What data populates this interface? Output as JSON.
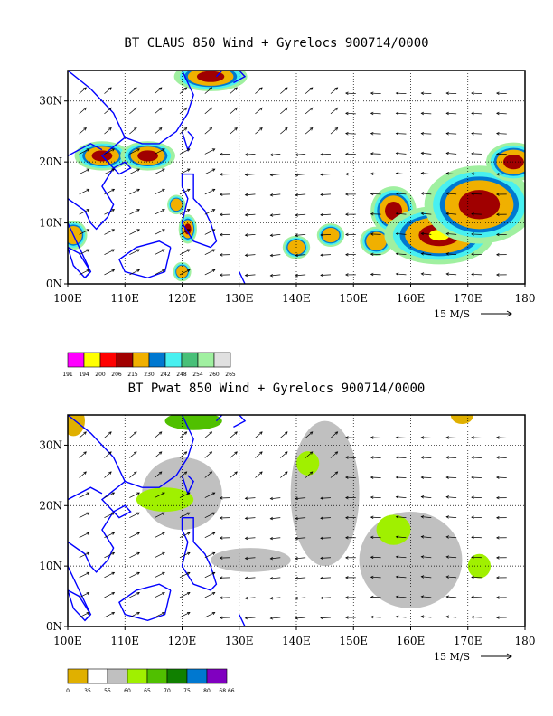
{
  "panels": [
    {
      "title": "BT CLAUS 850 Wind + Gyrelocs 900714/0000",
      "lat_labels": [
        "30N",
        "20N",
        "10N",
        "0N"
      ],
      "lon_labels": [
        "100E",
        "110E",
        "120E",
        "130E",
        "140E",
        "150E",
        "160E",
        "170E",
        "180"
      ],
      "ref_vector_label": "15 M/S",
      "legend": {
        "colors": [
          "#ff00ff",
          "#ffff00",
          "#ff0000",
          "#a00000",
          "#f0b000",
          "#0078d0",
          "#48f0f0",
          "#48c078",
          "#a0f0a0",
          "#e0e0e0"
        ],
        "labels": [
          "191",
          "194",
          "200",
          "206",
          "215",
          "230",
          "242",
          "248",
          "254",
          "260",
          "265"
        ]
      }
    },
    {
      "title": "BT Pwat 850 Wind + Gyrelocs 900714/0000",
      "lat_labels": [
        "30N",
        "20N",
        "10N",
        "0N"
      ],
      "lon_labels": [
        "100E",
        "110E",
        "120E",
        "130E",
        "140E",
        "150E",
        "160E",
        "170E",
        "180"
      ],
      "ref_vector_label": "15 M/S",
      "legend": {
        "colors": [
          "#e0b000",
          "#ffffff",
          "#c0c0c0",
          "#a0f000",
          "#50c000",
          "#108000",
          "#0078d0",
          "#8000c0"
        ],
        "labels": [
          "0",
          "35",
          "55",
          "60",
          "65",
          "70",
          "75",
          "80",
          "68.66"
        ]
      }
    }
  ],
  "map": {
    "lon_range": [
      100,
      180
    ],
    "lat_range": [
      0,
      35
    ],
    "coast_color": "#0000ff",
    "grid": "dotted"
  },
  "claus_features": [
    {
      "lon": 121,
      "lat": 9,
      "rx": 1.0,
      "ry": 1.5,
      "level": 2
    },
    {
      "lon": 140,
      "lat": 6,
      "rx": 1.5,
      "ry": 1.2,
      "level": 1
    },
    {
      "lon": 146,
      "lat": 8,
      "rx": 1.5,
      "ry": 1.2,
      "level": 1
    },
    {
      "lon": 154,
      "lat": 7,
      "rx": 1.8,
      "ry": 1.5,
      "level": 1
    },
    {
      "lon": 157,
      "lat": 12,
      "rx": 2.5,
      "ry": 2.5,
      "level": 2
    },
    {
      "lon": 165,
      "lat": 8,
      "rx": 6,
      "ry": 3,
      "level": 3
    },
    {
      "lon": 172,
      "lat": 13,
      "rx": 6,
      "ry": 4,
      "level": 2
    },
    {
      "lon": 178,
      "lat": 20,
      "rx": 3,
      "ry": 2,
      "level": 2
    },
    {
      "lon": 106,
      "lat": 21,
      "rx": 3,
      "ry": 1.5,
      "level": 2
    },
    {
      "lon": 114,
      "lat": 21,
      "rx": 3,
      "ry": 1.5,
      "level": 2
    },
    {
      "lon": 125,
      "lat": 34,
      "rx": 4,
      "ry": 1.5,
      "level": 2
    },
    {
      "lon": 120,
      "lat": 2,
      "rx": 1,
      "ry": 1,
      "level": 1
    },
    {
      "lon": 101,
      "lat": 8,
      "rx": 1.5,
      "ry": 1.5,
      "level": 1
    },
    {
      "lon": 119,
      "lat": 13,
      "rx": 1,
      "ry": 1,
      "level": 1
    }
  ],
  "pwat_features": [
    {
      "lon": 120,
      "lat": 22,
      "rx": 7,
      "ry": 6,
      "level": 0
    },
    {
      "lon": 145,
      "lat": 22,
      "rx": 6,
      "ry": 12,
      "level": 0
    },
    {
      "lon": 160,
      "lat": 11,
      "rx": 9,
      "ry": 8,
      "level": 0
    },
    {
      "lon": 132,
      "lat": 11,
      "rx": 7,
      "ry": 2,
      "level": 0
    },
    {
      "lon": 117,
      "lat": 21,
      "rx": 5,
      "ry": 2,
      "level": 1
    },
    {
      "lon": 122,
      "lat": 34,
      "rx": 5,
      "ry": 1.5,
      "level": 2
    },
    {
      "lon": 142,
      "lat": 27,
      "rx": 2,
      "ry": 2,
      "level": 1
    },
    {
      "lon": 157,
      "lat": 16,
      "rx": 3,
      "ry": 2.5,
      "level": 1
    },
    {
      "lon": 172,
      "lat": 10,
      "rx": 2,
      "ry": 2,
      "level": 1
    },
    {
      "lon": 101,
      "lat": 34,
      "rx": 2,
      "ry": 2.5,
      "level": -1
    },
    {
      "lon": 169,
      "lat": 35,
      "rx": 2,
      "ry": 1.5,
      "level": -1
    }
  ]
}
